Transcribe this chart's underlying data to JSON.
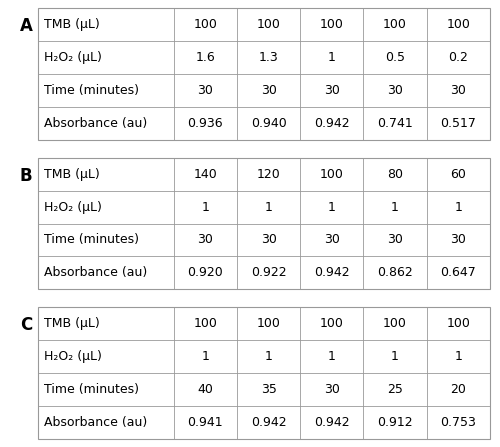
{
  "tables": [
    {
      "label": "A",
      "rows": [
        {
          "name": "TMB (μL)",
          "values": [
            "100",
            "100",
            "100",
            "100",
            "100"
          ]
        },
        {
          "name": "H₂O₂ (μL)",
          "values": [
            "1.6",
            "1.3",
            "1",
            "0.5",
            "0.2"
          ]
        },
        {
          "name": "Time (minutes)",
          "values": [
            "30",
            "30",
            "30",
            "30",
            "30"
          ]
        },
        {
          "name": "Absorbance (au)",
          "values": [
            "0.936",
            "0.940",
            "0.942",
            "0.741",
            "0.517"
          ]
        }
      ]
    },
    {
      "label": "B",
      "rows": [
        {
          "name": "TMB (μL)",
          "values": [
            "140",
            "120",
            "100",
            "80",
            "60"
          ]
        },
        {
          "name": "H₂O₂ (μL)",
          "values": [
            "1",
            "1",
            "1",
            "1",
            "1"
          ]
        },
        {
          "name": "Time (minutes)",
          "values": [
            "30",
            "30",
            "30",
            "30",
            "30"
          ]
        },
        {
          "name": "Absorbance (au)",
          "values": [
            "0.920",
            "0.922",
            "0.942",
            "0.862",
            "0.647"
          ]
        }
      ]
    },
    {
      "label": "C",
      "rows": [
        {
          "name": "TMB (μL)",
          "values": [
            "100",
            "100",
            "100",
            "100",
            "100"
          ]
        },
        {
          "name": "H₂O₂ (μL)",
          "values": [
            "1",
            "1",
            "1",
            "1",
            "1"
          ]
        },
        {
          "name": "Time (minutes)",
          "values": [
            "40",
            "35",
            "30",
            "25",
            "20"
          ]
        },
        {
          "name": "Absorbance (au)",
          "values": [
            "0.941",
            "0.942",
            "0.942",
            "0.912",
            "0.753"
          ]
        }
      ]
    }
  ],
  "bg_color": "#ffffff",
  "text_color": "#000000",
  "label_fontsize": 12,
  "cell_fontsize": 9,
  "row_label_fontsize": 9,
  "line_color": "#999999"
}
